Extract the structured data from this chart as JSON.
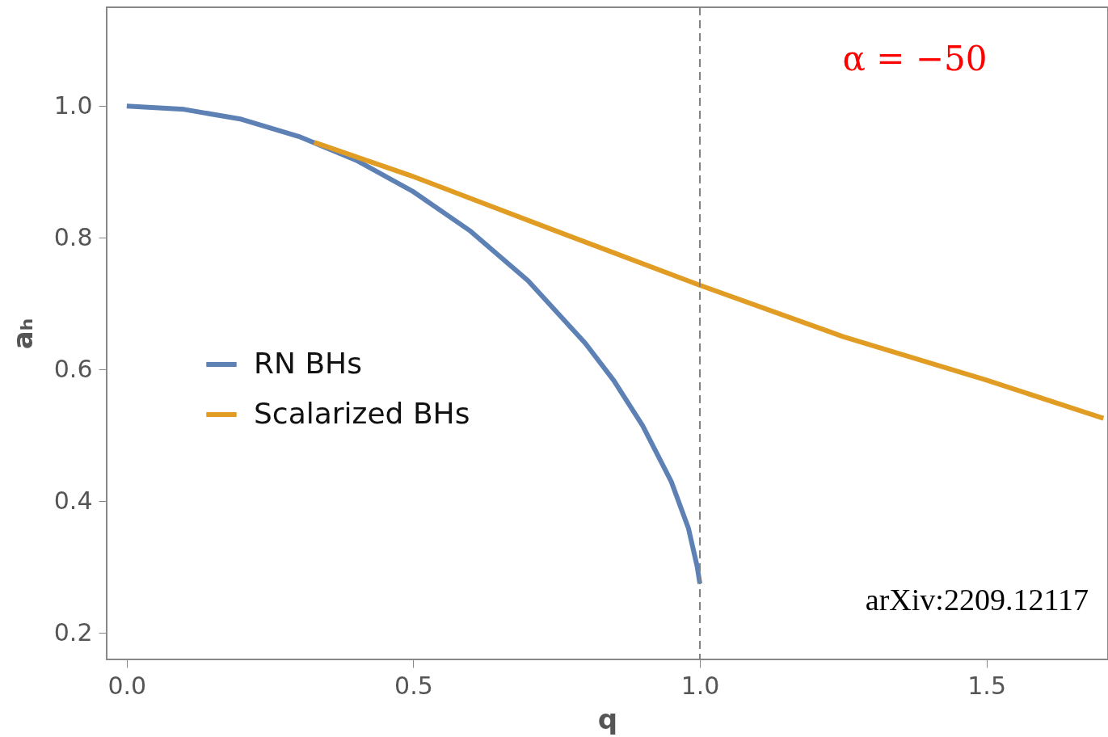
{
  "chart_data": {
    "type": "line",
    "xlabel": "q",
    "ylabel": "aₕ",
    "xlim": [
      -0.035,
      1.712
    ],
    "ylim": [
      0.16,
      1.15
    ],
    "xticks": [
      {
        "value": 0.0,
        "label": "0.0"
      },
      0.5,
      {
        "value": 1.0,
        "label": "1.0"
      },
      1.5
    ],
    "yticks": [
      0.2,
      0.4,
      0.6,
      0.8,
      {
        "value": 1.0,
        "label": "1.0"
      }
    ],
    "grid": false,
    "legend": "left",
    "line_style": "solid",
    "marker": "none",
    "series": [
      {
        "name": "RN BHs",
        "color": "#5e81b5",
        "x": [
          0,
          0.1,
          0.2,
          0.3,
          0.4,
          0.5,
          0.6,
          0.7,
          0.8,
          0.85,
          0.9,
          0.95,
          0.98,
          0.995,
          1.0
        ],
        "values": [
          1.0,
          0.995,
          0.98,
          0.954,
          0.918,
          0.87,
          0.81,
          0.735,
          0.64,
          0.583,
          0.515,
          0.43,
          0.359,
          0.302,
          0.275
        ]
      },
      {
        "name": "Scalarized BHs",
        "color": "#e19c24",
        "x": [
          0.327,
          0.5,
          0.75,
          1.0,
          1.25,
          1.5,
          1.704
        ],
        "values": [
          0.945,
          0.893,
          0.81,
          0.728,
          0.65,
          0.584,
          0.526
        ]
      }
    ],
    "ref_lines": [
      {
        "axis": "x",
        "value": 1.0,
        "line_style": "dashed",
        "color": "#808080"
      }
    ],
    "annotations": [
      "α = −50",
      "arXiv:2209.12117"
    ]
  }
}
